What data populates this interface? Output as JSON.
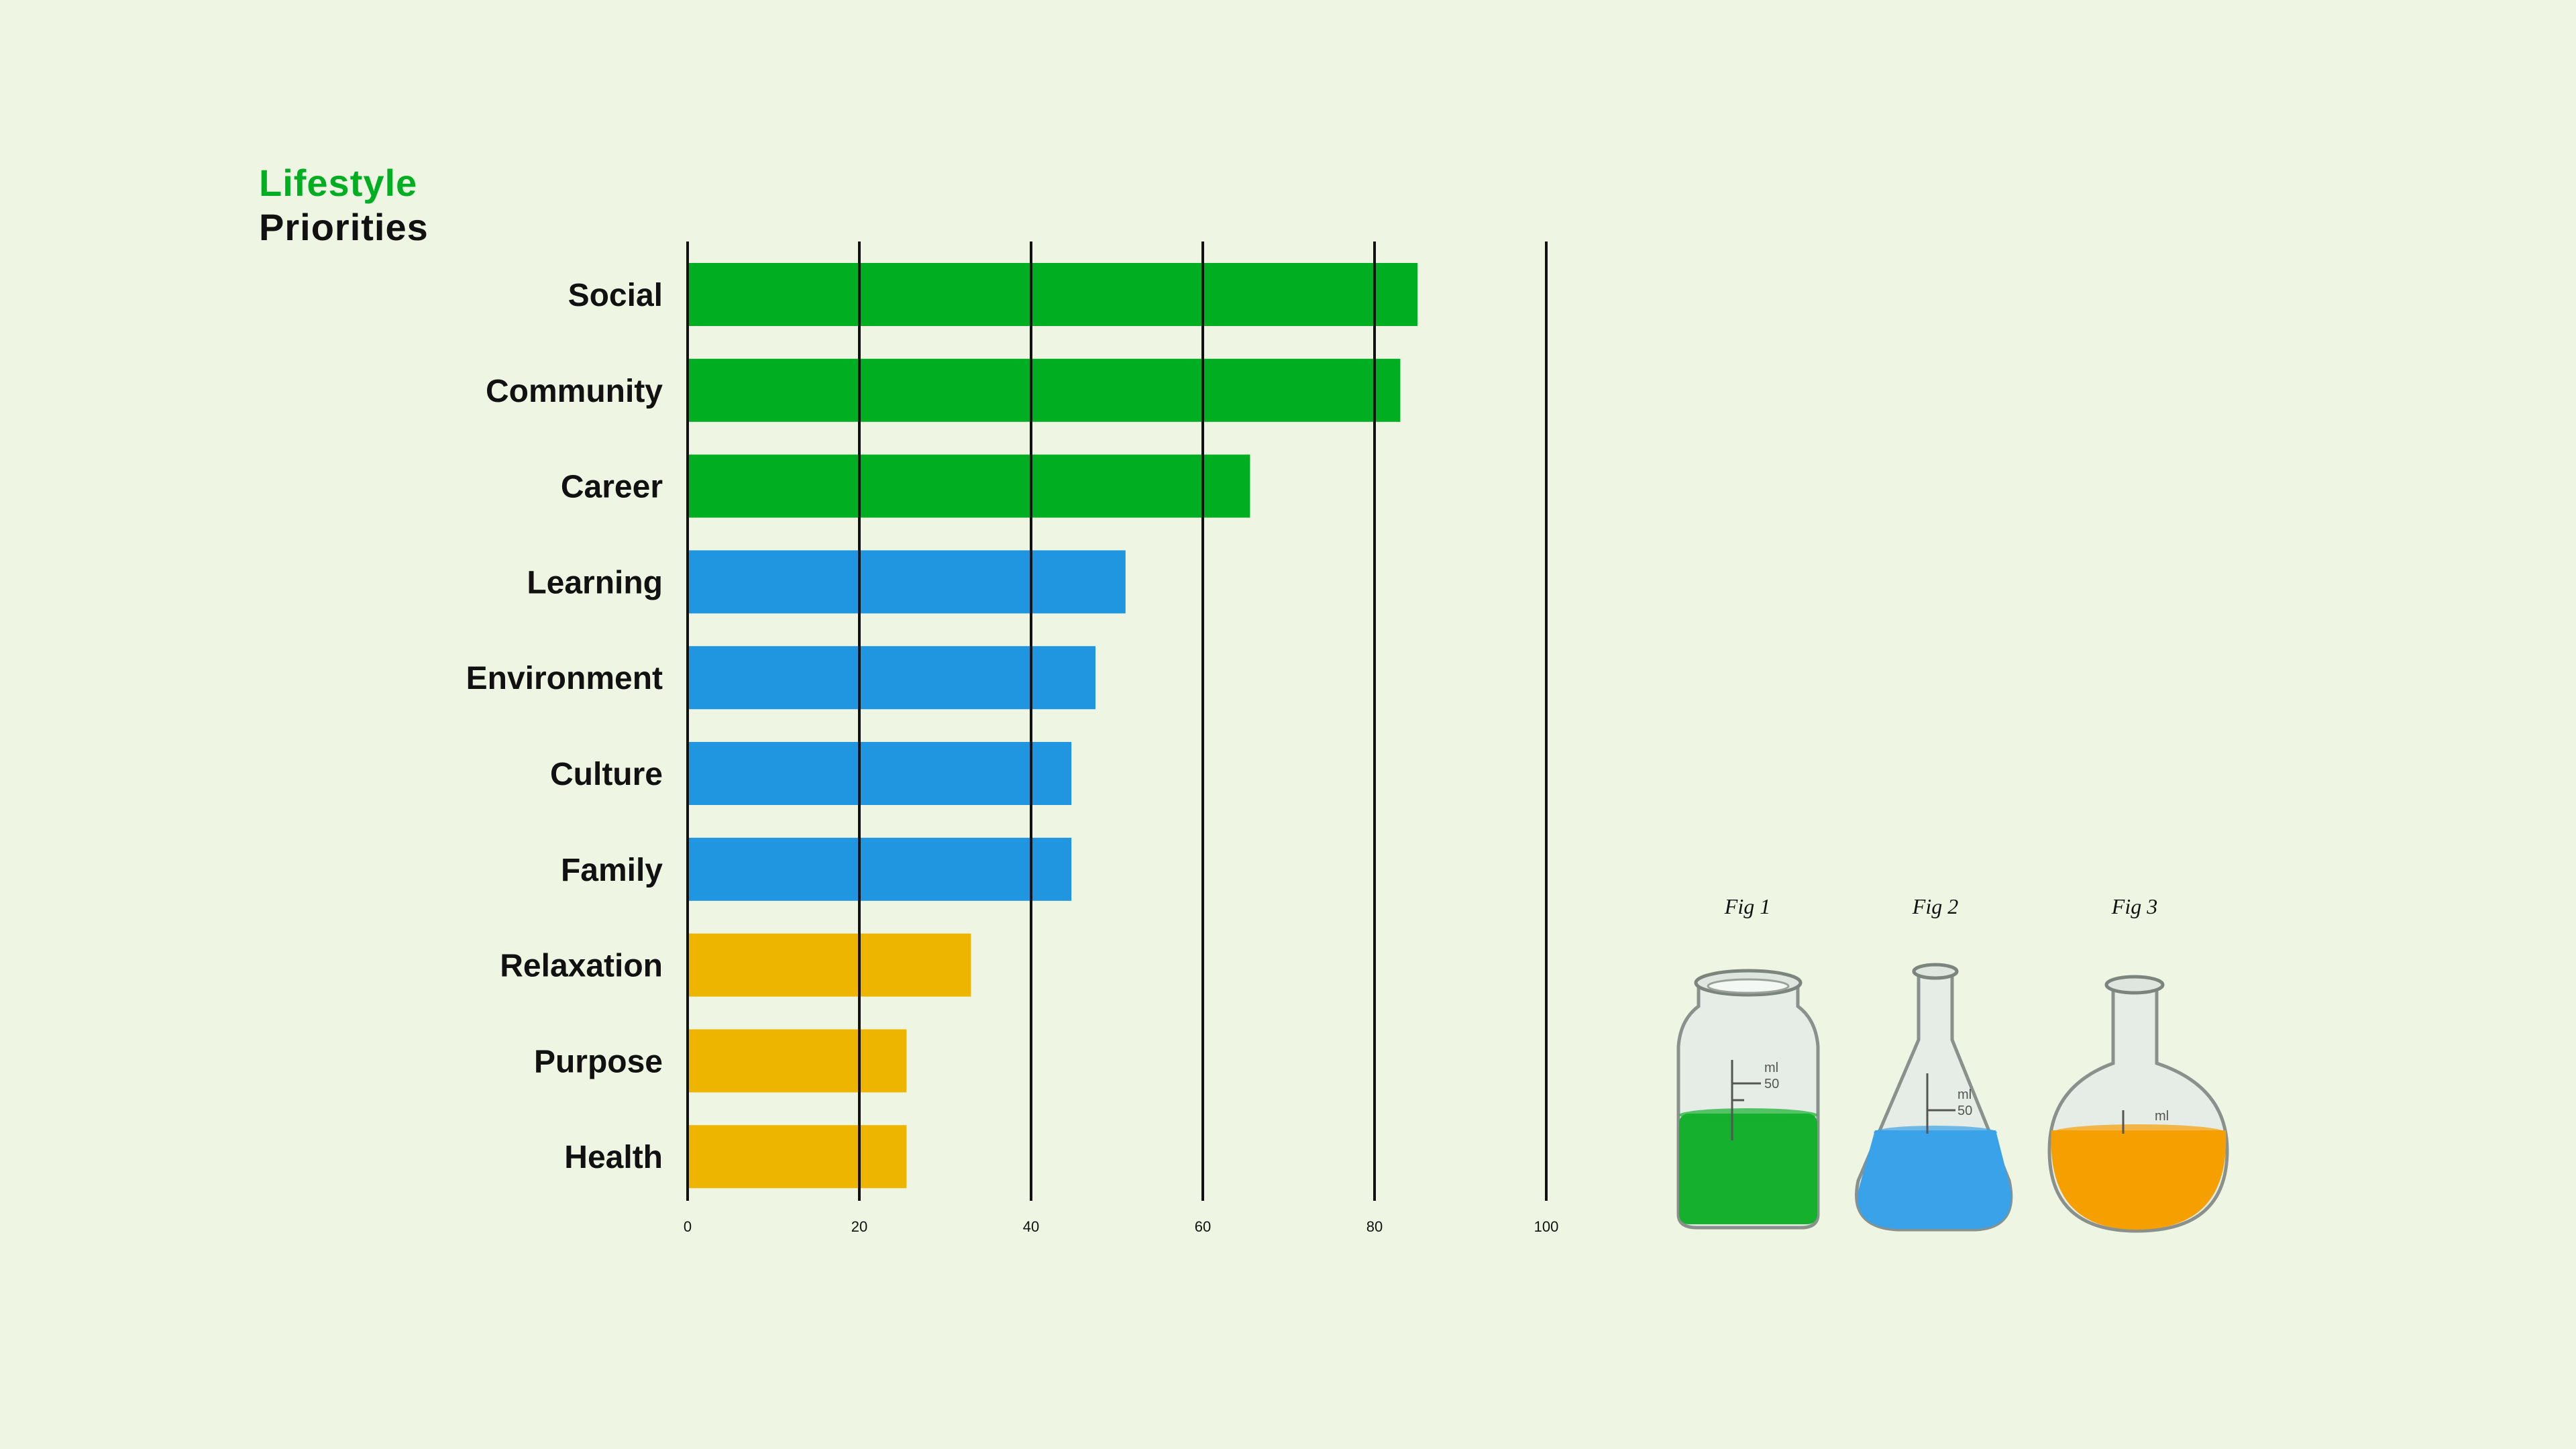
{
  "title": {
    "line1": "Lifestyle",
    "line2": "Priorities"
  },
  "chart_data": {
    "type": "bar",
    "orientation": "horizontal",
    "title": "Lifestyle Priorities",
    "categories": [
      "Social",
      "Community",
      "Career",
      "Learning",
      "Environment",
      "Culture",
      "Family",
      "Relaxation",
      "Purpose",
      "Health"
    ],
    "values": [
      85,
      83,
      65.5,
      51,
      47.5,
      44.7,
      44.7,
      33,
      25.5,
      25.5
    ],
    "colors": [
      "#00ae22",
      "#00ae22",
      "#00ae22",
      "#2196e0",
      "#2196e0",
      "#2196e0",
      "#2196e0",
      "#eeb500",
      "#eeb500",
      "#eeb500"
    ],
    "xlim": [
      0,
      100
    ],
    "xticks": [
      0,
      20,
      40,
      60,
      80,
      100
    ],
    "xlabel": "",
    "ylabel": "",
    "grid": "vertical"
  },
  "figures": [
    {
      "label": "Fig 1",
      "vessel": "bottle-icon",
      "liquid_color": "#14b02e",
      "marks": [
        "ml",
        "50"
      ]
    },
    {
      "label": "Fig 2",
      "vessel": "erlenmeyer-flask-icon",
      "liquid_color": "#3aa2e8",
      "marks": [
        "ml",
        "50"
      ]
    },
    {
      "label": "Fig 3",
      "vessel": "round-flask-icon",
      "liquid_color": "#f5a000",
      "marks": [
        "ml"
      ]
    }
  ]
}
